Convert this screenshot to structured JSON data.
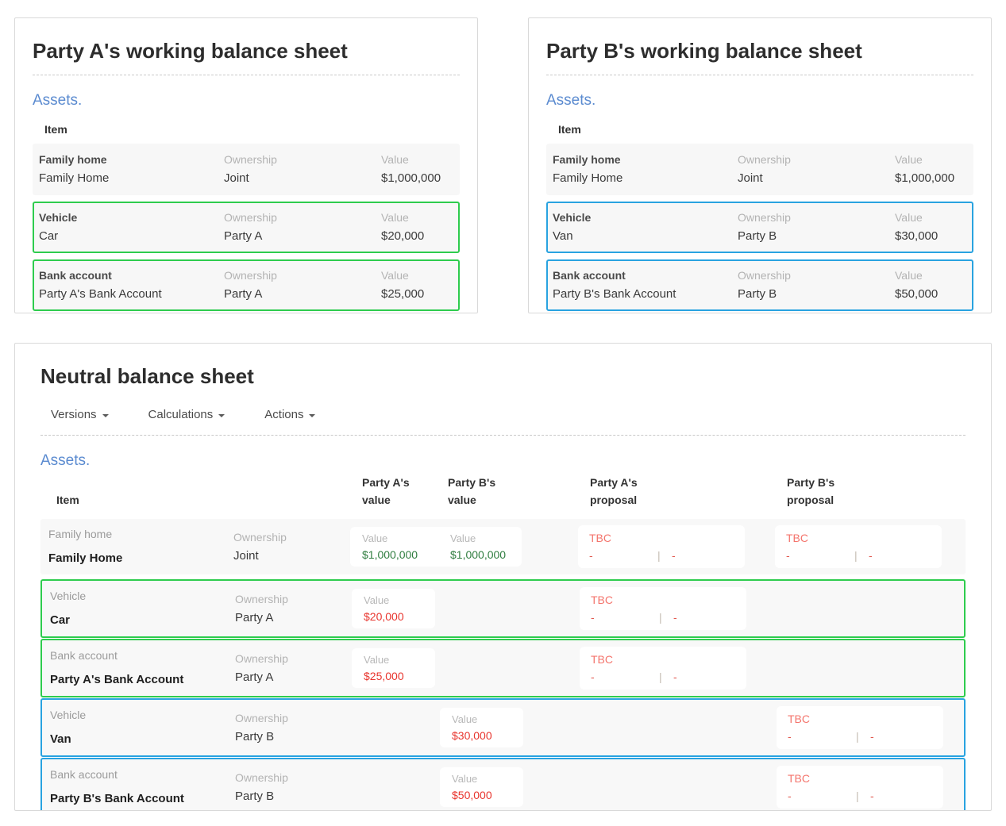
{
  "colors": {
    "green_highlight": "#2ecc4e",
    "blue_highlight": "#29a3e0",
    "assets_blue": "#5b8bd0",
    "money_green": "#2f7d3f",
    "money_red": "#e8352e",
    "tbc_salmon": "#f4756d"
  },
  "party_a_sheet": {
    "title": "Party A's working balance sheet",
    "section_heading": "Assets.",
    "item_header": "Item",
    "labels": {
      "ownership": "Ownership",
      "value": "Value"
    },
    "rows": [
      {
        "type": "Family home",
        "name": "Family Home",
        "ownership": "Joint",
        "value": "$1,000,000",
        "highlight": "none"
      },
      {
        "type": "Vehicle",
        "name": "Car",
        "ownership": "Party A",
        "value": "$20,000",
        "highlight": "green"
      },
      {
        "type": "Bank account",
        "name": "Party A's Bank Account",
        "ownership": "Party A",
        "value": "$25,000",
        "highlight": "green"
      }
    ]
  },
  "party_b_sheet": {
    "title": "Party B's working balance sheet",
    "section_heading": "Assets.",
    "item_header": "Item",
    "labels": {
      "ownership": "Ownership",
      "value": "Value"
    },
    "rows": [
      {
        "type": "Family home",
        "name": "Family Home",
        "ownership": "Joint",
        "value": "$1,000,000",
        "highlight": "none"
      },
      {
        "type": "Vehicle",
        "name": "Van",
        "ownership": "Party B",
        "value": "$30,000",
        "highlight": "blue"
      },
      {
        "type": "Bank account",
        "name": "Party B's Bank Account",
        "ownership": "Party B",
        "value": "$50,000",
        "highlight": "blue"
      }
    ]
  },
  "neutral_sheet": {
    "title": "Neutral balance sheet",
    "menus": [
      {
        "label": "Versions"
      },
      {
        "label": "Calculations"
      },
      {
        "label": "Actions"
      }
    ],
    "section_heading": "Assets.",
    "headers": {
      "item": "Item",
      "party_a_value_top": "Party A's",
      "party_a_value_bottom": "value",
      "party_b_value_top": "Party B's",
      "party_b_value_bottom": "value",
      "party_a_proposal_top": "Party A's",
      "party_a_proposal_bottom": "proposal",
      "party_b_proposal_top": "Party B's",
      "party_b_proposal_bottom": "proposal"
    },
    "labels": {
      "ownership": "Ownership",
      "value": "Value",
      "tbc": "TBC",
      "dash": "-",
      "pipe": "|"
    },
    "rows": [
      {
        "type": "Family home",
        "name": "Family Home",
        "ownership": "Joint",
        "value_a": "$1,000,000",
        "value_b": "$1,000,000",
        "value_color": "green",
        "proposal_a": true,
        "proposal_b": true,
        "highlight": "none"
      },
      {
        "type": "Vehicle",
        "name": "Car",
        "ownership": "Party A",
        "value_a": "$20,000",
        "value_b": null,
        "value_color": "red",
        "proposal_a": true,
        "proposal_b": false,
        "highlight": "green"
      },
      {
        "type": "Bank account",
        "name": "Party A's Bank Account",
        "ownership": "Party A",
        "value_a": "$25,000",
        "value_b": null,
        "value_color": "red",
        "proposal_a": true,
        "proposal_b": false,
        "highlight": "green"
      },
      {
        "type": "Vehicle",
        "name": "Van",
        "ownership": "Party B",
        "value_a": null,
        "value_b": "$30,000",
        "value_color": "red",
        "proposal_a": false,
        "proposal_b": true,
        "highlight": "blue"
      },
      {
        "type": "Bank account",
        "name": "Party B's Bank Account",
        "ownership": "Party B",
        "value_a": null,
        "value_b": "$50,000",
        "value_color": "red",
        "proposal_a": false,
        "proposal_b": true,
        "highlight": "blue"
      }
    ]
  }
}
